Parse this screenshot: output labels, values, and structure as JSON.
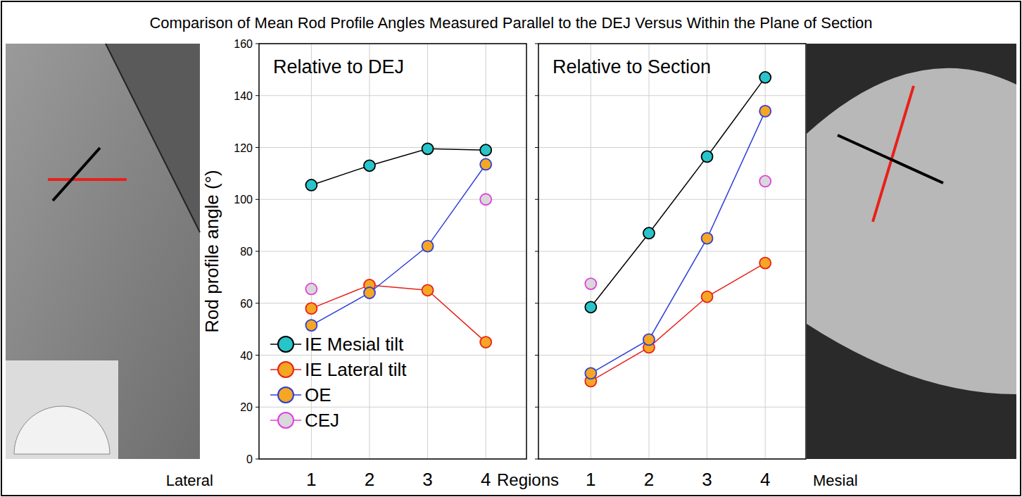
{
  "title": "Comparison of Mean Rod Profile Angles Measured Parallel to the DEJ Versus Within the Plane of Section",
  "annotations": [
    "Lateral",
    "Regions",
    "Mesial"
  ],
  "chart_data": [
    {
      "type": "line",
      "subtitle": "Relative to DEJ",
      "y_label": "Rod profile angle (°)",
      "categories": [
        "1",
        "2",
        "3",
        "4"
      ],
      "series": [
        {
          "name": "IE Mesial tilt",
          "color": "#000000",
          "marker": "circle",
          "line_style": "solid",
          "values": [
            105.5,
            113,
            119.5,
            119
          ]
        },
        {
          "name": "IE Lateral tilt",
          "color": "#e8201a",
          "marker": "circle",
          "line_style": "solid",
          "values": [
            58,
            67,
            65,
            45
          ]
        },
        {
          "name": "OE",
          "color": "#2c3fd6",
          "marker": "circle",
          "line_style": "solid",
          "values": [
            51.5,
            64,
            82,
            113.5
          ]
        },
        {
          "name": "CEJ",
          "color": "#e040e0",
          "marker": "circle",
          "line_style": "none",
          "values": [
            65.5,
            null,
            null,
            100
          ]
        }
      ],
      "ylim": [
        0,
        160
      ],
      "yticks": [
        0,
        20,
        40,
        60,
        80,
        100,
        120,
        140,
        160
      ],
      "grid": true,
      "legend": "lower left"
    },
    {
      "type": "line",
      "subtitle": "Relative to Section",
      "categories": [
        "1",
        "2",
        "3",
        "4"
      ],
      "series": [
        {
          "name": "IE Mesial tilt",
          "color": "#000000",
          "marker": "circle",
          "line_style": "solid",
          "values": [
            58.5,
            87,
            116.5,
            147
          ]
        },
        {
          "name": "IE Lateral tilt",
          "color": "#e8201a",
          "marker": "circle",
          "line_style": "solid",
          "values": [
            30,
            43,
            62.5,
            75.5
          ]
        },
        {
          "name": "OE",
          "color": "#2c3fd6",
          "marker": "circle",
          "line_style": "solid",
          "values": [
            33,
            46,
            85,
            134
          ]
        },
        {
          "name": "CEJ",
          "color": "#e040e0",
          "marker": "circle",
          "line_style": "none",
          "values": [
            67.5,
            null,
            null,
            107
          ]
        }
      ],
      "ylim": [
        0,
        160
      ],
      "yticks": [
        0,
        20,
        40,
        60,
        80,
        100,
        120,
        140,
        160
      ],
      "grid": true,
      "tick_labels": "x"
    }
  ]
}
